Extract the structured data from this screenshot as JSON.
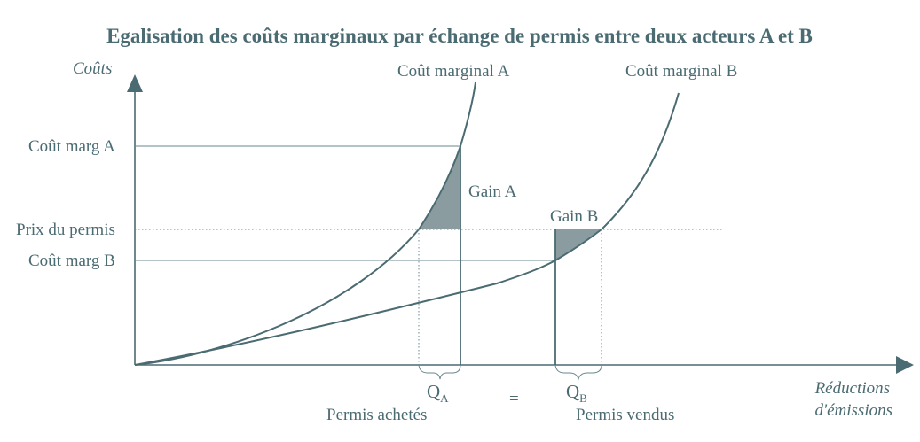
{
  "title": "Egalisation des coûts marginaux par échange de permis entre deux acteurs A et B",
  "axes": {
    "y_label": "Coûts",
    "x_label_line1": "Réductions",
    "x_label_line2": "d'émissions"
  },
  "curves": {
    "a_label": "Coût marginal A",
    "b_label": "Coût marginal B"
  },
  "levels": {
    "cout_marg_a": "Coût marg A",
    "prix_du_permis": "Prix du permis",
    "cout_marg_b": "Coût marg B"
  },
  "gains": {
    "a": "Gain A",
    "b": "Gain B"
  },
  "quantities": {
    "qa_main": "Q",
    "qa_sub": "A",
    "qb_main": "Q",
    "qb_sub": "B",
    "equals": "=",
    "permis_achetes": "Permis achetés",
    "permis_vendus": "Permis vendus"
  },
  "colors": {
    "ink": "#4b6b72",
    "gain_fill": "#8a9ca0"
  }
}
